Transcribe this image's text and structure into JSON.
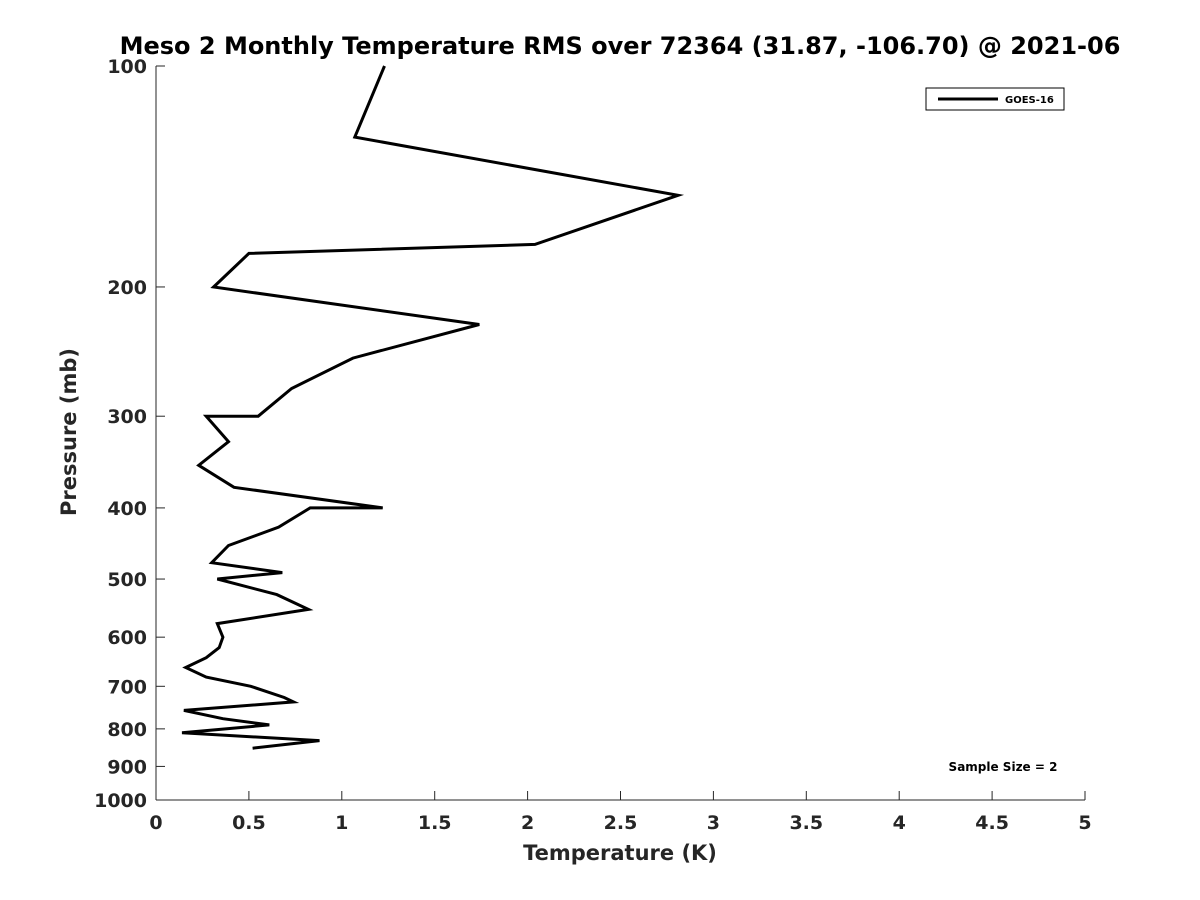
{
  "chart_data": {
    "type": "line",
    "title": "Meso 2 Monthly Temperature RMS over 72364 (31.87, -106.70) @ 2021-06",
    "xlabel": "Temperature (K)",
    "ylabel": "Pressure (mb)",
    "xlim": [
      0,
      5
    ],
    "ylim": [
      100,
      1000
    ],
    "y_scale": "log",
    "y_reversed": true,
    "x_ticks": [
      "0",
      "0.5",
      "1",
      "1.5",
      "2",
      "2.5",
      "3",
      "3.5",
      "4",
      "4.5",
      "5"
    ],
    "x_tick_values": [
      0,
      0.5,
      1,
      1.5,
      2,
      2.5,
      3,
      3.5,
      4,
      4.5,
      5
    ],
    "y_ticks": [
      "100",
      "200",
      "300",
      "400",
      "500",
      "600",
      "700",
      "800",
      "900",
      "1000"
    ],
    "y_tick_values": [
      100,
      200,
      300,
      400,
      500,
      600,
      700,
      800,
      900,
      1000
    ],
    "grid": false,
    "legend_position": "top-right",
    "annotation": "Sample Size = 2",
    "series": [
      {
        "name": "GOES-16",
        "color": "#000000",
        "points": [
          {
            "x": 1.23,
            "y": 100
          },
          {
            "x": 1.07,
            "y": 125
          },
          {
            "x": 2.81,
            "y": 150
          },
          {
            "x": 2.04,
            "y": 175
          },
          {
            "x": 0.5,
            "y": 180
          },
          {
            "x": 0.31,
            "y": 200
          },
          {
            "x": 1.74,
            "y": 225
          },
          {
            "x": 1.06,
            "y": 250
          },
          {
            "x": 0.73,
            "y": 275
          },
          {
            "x": 0.55,
            "y": 300
          },
          {
            "x": 0.27,
            "y": 300
          },
          {
            "x": 0.39,
            "y": 325
          },
          {
            "x": 0.23,
            "y": 350
          },
          {
            "x": 0.42,
            "y": 375
          },
          {
            "x": 1.22,
            "y": 400
          },
          {
            "x": 0.83,
            "y": 400
          },
          {
            "x": 0.66,
            "y": 425
          },
          {
            "x": 0.39,
            "y": 450
          },
          {
            "x": 0.3,
            "y": 475
          },
          {
            "x": 0.68,
            "y": 490
          },
          {
            "x": 0.33,
            "y": 500
          },
          {
            "x": 0.65,
            "y": 525
          },
          {
            "x": 0.82,
            "y": 550
          },
          {
            "x": 0.33,
            "y": 575
          },
          {
            "x": 0.36,
            "y": 600
          },
          {
            "x": 0.34,
            "y": 620
          },
          {
            "x": 0.27,
            "y": 640
          },
          {
            "x": 0.16,
            "y": 660
          },
          {
            "x": 0.27,
            "y": 680
          },
          {
            "x": 0.51,
            "y": 700
          },
          {
            "x": 0.69,
            "y": 725
          },
          {
            "x": 0.74,
            "y": 735
          },
          {
            "x": 0.15,
            "y": 755
          },
          {
            "x": 0.36,
            "y": 775
          },
          {
            "x": 0.61,
            "y": 790
          },
          {
            "x": 0.14,
            "y": 810
          },
          {
            "x": 0.88,
            "y": 830
          },
          {
            "x": 0.52,
            "y": 850
          }
        ]
      }
    ]
  }
}
